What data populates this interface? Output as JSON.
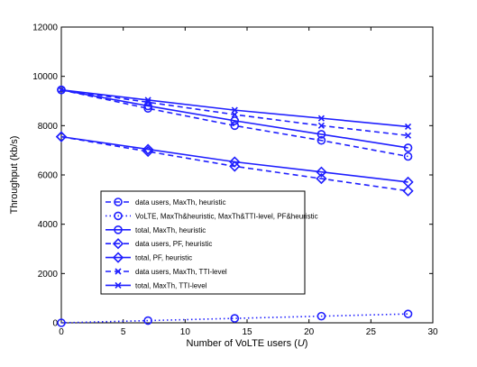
{
  "chart_data": {
    "type": "line",
    "xlabel_prefix": "Number of VoLTE users (",
    "xlabel_var": "U",
    "xlabel_suffix": ")",
    "ylabel": "Throughput (kb/s)",
    "xlim": [
      0,
      30
    ],
    "ylim": [
      0,
      12000
    ],
    "xticks": [
      0,
      5,
      10,
      15,
      20,
      25,
      30
    ],
    "yticks": [
      0,
      2000,
      4000,
      6000,
      8000,
      10000,
      12000
    ],
    "grid": false,
    "legend_position": "lower-left",
    "color": "#1f1fff",
    "x": [
      0,
      7,
      14,
      21,
      28
    ],
    "series": [
      {
        "name": "data users, MaxTh, heuristic",
        "values": [
          9450,
          8700,
          8000,
          7400,
          6750
        ],
        "line": "dashed",
        "marker": "circle"
      },
      {
        "name": "VoLTE, MaxTh&heuristic, MaxTh&TTI-level, PF&heuristic",
        "values": [
          0,
          90,
          180,
          270,
          360
        ],
        "line": "dotted",
        "marker": "circle"
      },
      {
        "name": "total, MaxTh, heuristic",
        "values": [
          9450,
          8800,
          8200,
          7650,
          7100
        ],
        "line": "solid",
        "marker": "circle"
      },
      {
        "name": "data users, PF, heuristic",
        "values": [
          7550,
          6950,
          6350,
          5850,
          5350
        ],
        "line": "dashed",
        "marker": "diamond"
      },
      {
        "name": "total, PF, heuristic",
        "values": [
          7550,
          7040,
          6530,
          6120,
          5710
        ],
        "line": "solid",
        "marker": "diamond"
      },
      {
        "name": "data users, MaxTh, TTI-level",
        "values": [
          9450,
          8950,
          8450,
          8000,
          7600
        ],
        "line": "dashed",
        "marker": "x"
      },
      {
        "name": "total, MaxTh, TTI-level",
        "values": [
          9450,
          9040,
          8630,
          8300,
          7960
        ],
        "line": "solid",
        "marker": "x"
      }
    ]
  }
}
